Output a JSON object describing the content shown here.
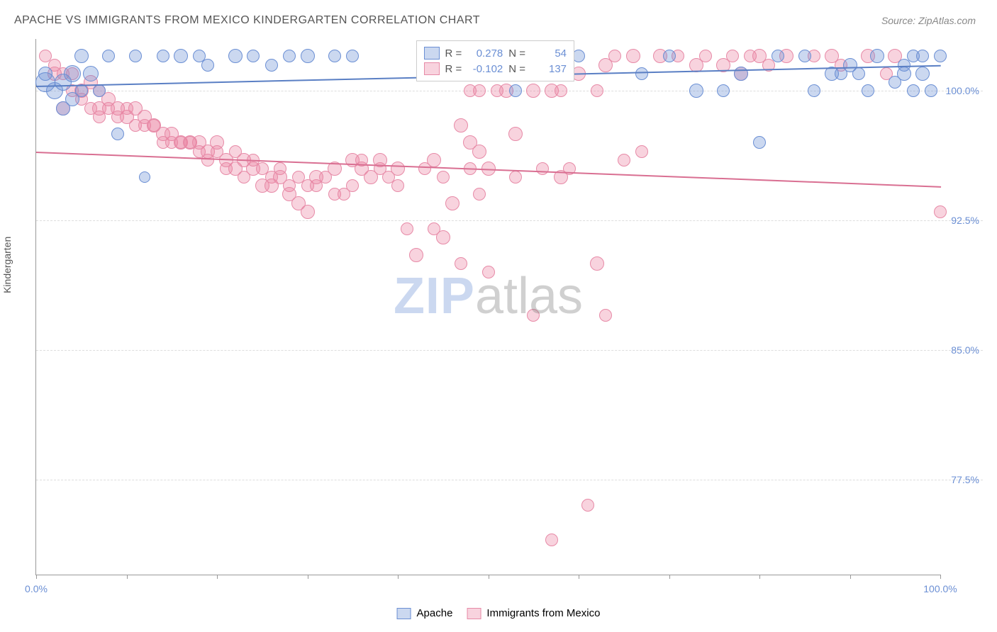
{
  "header": {
    "title": "APACHE VS IMMIGRANTS FROM MEXICO KINDERGARTEN CORRELATION CHART",
    "source": "Source: ZipAtlas.com"
  },
  "axes": {
    "y_label": "Kindergarten",
    "x_min": 0,
    "x_max": 100,
    "y_min": 72,
    "y_max": 103,
    "y_ticks": [
      77.5,
      85.0,
      92.5,
      100.0
    ],
    "y_tick_labels": [
      "77.5%",
      "85.0%",
      "92.5%",
      "100.0%"
    ],
    "x_ticks": [
      0,
      10,
      20,
      30,
      40,
      50,
      60,
      70,
      80,
      90,
      100
    ],
    "x_tick_labels": {
      "0": "0.0%",
      "100": "100.0%"
    }
  },
  "series": {
    "apache": {
      "label": "Apache",
      "color_fill": "rgba(107,143,212,0.35)",
      "color_stroke": "#6b8fd4",
      "r_value": "0.278",
      "n_value": "54",
      "trend": {
        "x1": 0,
        "y1": 100.3,
        "x2": 100,
        "y2": 101.5,
        "color": "#5a7fc4"
      },
      "points": [
        [
          1,
          100.5,
          14
        ],
        [
          1,
          101,
          10
        ],
        [
          2,
          100,
          12
        ],
        [
          3,
          100.5,
          12
        ],
        [
          3,
          99,
          10
        ],
        [
          4,
          101,
          12
        ],
        [
          4,
          99.5,
          10
        ],
        [
          5,
          100,
          9
        ],
        [
          5,
          102,
          10
        ],
        [
          6,
          101,
          11
        ],
        [
          7,
          100,
          9
        ],
        [
          8,
          102,
          9
        ],
        [
          9,
          97.5,
          9
        ],
        [
          11,
          102,
          9
        ],
        [
          12,
          95,
          8
        ],
        [
          14,
          102,
          9
        ],
        [
          16,
          102,
          10
        ],
        [
          18,
          102,
          9
        ],
        [
          19,
          101.5,
          9
        ],
        [
          22,
          102,
          10
        ],
        [
          24,
          102,
          9
        ],
        [
          26,
          101.5,
          9
        ],
        [
          28,
          102,
          9
        ],
        [
          30,
          102,
          10
        ],
        [
          33,
          102,
          9
        ],
        [
          35,
          102,
          9
        ],
        [
          49,
          102,
          9
        ],
        [
          53,
          100,
          9
        ],
        [
          56,
          101,
          9
        ],
        [
          60,
          102,
          9
        ],
        [
          67,
          101,
          9
        ],
        [
          70,
          102,
          9
        ],
        [
          73,
          100,
          10
        ],
        [
          76,
          100,
          9
        ],
        [
          78,
          101,
          10
        ],
        [
          80,
          97,
          9
        ],
        [
          82,
          102,
          9
        ],
        [
          85,
          102,
          9
        ],
        [
          86,
          100,
          9
        ],
        [
          88,
          101,
          10
        ],
        [
          89,
          101,
          9
        ],
        [
          90,
          101.5,
          10
        ],
        [
          91,
          101,
          9
        ],
        [
          92,
          100,
          9
        ],
        [
          93,
          102,
          10
        ],
        [
          95,
          100.5,
          9
        ],
        [
          96,
          101.5,
          9
        ],
        [
          96,
          101,
          10
        ],
        [
          97,
          100,
          9
        ],
        [
          97,
          102,
          9
        ],
        [
          98,
          101,
          10
        ],
        [
          98,
          102,
          9
        ],
        [
          99,
          100,
          9
        ],
        [
          100,
          102,
          9
        ]
      ]
    },
    "mexico": {
      "label": "Immigrants from Mexico",
      "color_fill": "rgba(235,130,160,0.35)",
      "color_stroke": "#e78aa7",
      "r_value": "-0.102",
      "n_value": "137",
      "trend": {
        "x1": 0,
        "y1": 96.5,
        "x2": 100,
        "y2": 94.5,
        "color": "#d96f92"
      },
      "points": [
        [
          1,
          102,
          9
        ],
        [
          2,
          101.5,
          9
        ],
        [
          2,
          101,
          10
        ],
        [
          3,
          101,
          9
        ],
        [
          3,
          99,
          10
        ],
        [
          4,
          101,
          9
        ],
        [
          4,
          100,
          9
        ],
        [
          5,
          100,
          10
        ],
        [
          5,
          99.5,
          9
        ],
        [
          6,
          100.5,
          10
        ],
        [
          6,
          99,
          9
        ],
        [
          7,
          100,
          9
        ],
        [
          7,
          99,
          10
        ],
        [
          7,
          98.5,
          9
        ],
        [
          8,
          99.5,
          10
        ],
        [
          8,
          99,
          9
        ],
        [
          9,
          99,
          10
        ],
        [
          9,
          98.5,
          9
        ],
        [
          10,
          98.5,
          10
        ],
        [
          10,
          99,
          9
        ],
        [
          11,
          99,
          10
        ],
        [
          11,
          98,
          9
        ],
        [
          12,
          98.5,
          10
        ],
        [
          12,
          98,
          9
        ],
        [
          13,
          98,
          10
        ],
        [
          13,
          98,
          9
        ],
        [
          14,
          97.5,
          10
        ],
        [
          14,
          97,
          9
        ],
        [
          15,
          97.5,
          10
        ],
        [
          15,
          97,
          9
        ],
        [
          16,
          97,
          10
        ],
        [
          16,
          97,
          9
        ],
        [
          17,
          97,
          10
        ],
        [
          17,
          97,
          9
        ],
        [
          18,
          97,
          10
        ],
        [
          18,
          96.5,
          9
        ],
        [
          19,
          96.5,
          10
        ],
        [
          19,
          96,
          9
        ],
        [
          20,
          96.5,
          9
        ],
        [
          20,
          97,
          10
        ],
        [
          21,
          95.5,
          9
        ],
        [
          21,
          96,
          10
        ],
        [
          22,
          96.5,
          9
        ],
        [
          22,
          95.5,
          10
        ],
        [
          23,
          96,
          10
        ],
        [
          23,
          95,
          9
        ],
        [
          24,
          95.5,
          10
        ],
        [
          24,
          96,
          9
        ],
        [
          25,
          95.5,
          9
        ],
        [
          25,
          94.5,
          10
        ],
        [
          26,
          95,
          9
        ],
        [
          26,
          94.5,
          10
        ],
        [
          27,
          95.5,
          9
        ],
        [
          27,
          95,
          10
        ],
        [
          28,
          94.5,
          9
        ],
        [
          28,
          94,
          10
        ],
        [
          29,
          95,
          9
        ],
        [
          29,
          93.5,
          10
        ],
        [
          30,
          94.5,
          9
        ],
        [
          30,
          93,
          10
        ],
        [
          31,
          94.5,
          9
        ],
        [
          31,
          95,
          10
        ],
        [
          32,
          95,
          9
        ],
        [
          33,
          94,
          9
        ],
        [
          33,
          95.5,
          10
        ],
        [
          34,
          94,
          9
        ],
        [
          35,
          96,
          10
        ],
        [
          35,
          94.5,
          9
        ],
        [
          36,
          95.5,
          10
        ],
        [
          36,
          96,
          9
        ],
        [
          37,
          95,
          10
        ],
        [
          38,
          95.5,
          9
        ],
        [
          38,
          96,
          10
        ],
        [
          39,
          95,
          9
        ],
        [
          40,
          95.5,
          10
        ],
        [
          40,
          94.5,
          9
        ],
        [
          41,
          92,
          9
        ],
        [
          42,
          90.5,
          10
        ],
        [
          43,
          95.5,
          9
        ],
        [
          44,
          96,
          10
        ],
        [
          44,
          92,
          9
        ],
        [
          45,
          91.5,
          10
        ],
        [
          45,
          95,
          9
        ],
        [
          46,
          93.5,
          10
        ],
        [
          47,
          90,
          9
        ],
        [
          47,
          98,
          10
        ],
        [
          48,
          95.5,
          9
        ],
        [
          48,
          97,
          10
        ],
        [
          48,
          100,
          9
        ],
        [
          48,
          101,
          9
        ],
        [
          49,
          96.5,
          10
        ],
        [
          49,
          100,
          9
        ],
        [
          49,
          94,
          9
        ],
        [
          50,
          95.5,
          10
        ],
        [
          50,
          89.5,
          9
        ],
        [
          51,
          100,
          9
        ],
        [
          52,
          100,
          10
        ],
        [
          52,
          101,
          9
        ],
        [
          53,
          95,
          9
        ],
        [
          53,
          97.5,
          10
        ],
        [
          54,
          101.5,
          9
        ],
        [
          55,
          100,
          10
        ],
        [
          55,
          87,
          9
        ],
        [
          56,
          95.5,
          9
        ],
        [
          57,
          100,
          10
        ],
        [
          57,
          74,
          9
        ],
        [
          58,
          100,
          9
        ],
        [
          58,
          95,
          10
        ],
        [
          59,
          95.5,
          9
        ],
        [
          60,
          101,
          10
        ],
        [
          61,
          76,
          9
        ],
        [
          62,
          100,
          9
        ],
        [
          62,
          90,
          10
        ],
        [
          63,
          87,
          9
        ],
        [
          63,
          101.5,
          10
        ],
        [
          64,
          102,
          9
        ],
        [
          65,
          96,
          9
        ],
        [
          66,
          102,
          10
        ],
        [
          67,
          96.5,
          9
        ],
        [
          69,
          102,
          10
        ],
        [
          71,
          102,
          9
        ],
        [
          73,
          101.5,
          10
        ],
        [
          74,
          102,
          9
        ],
        [
          76,
          101.5,
          10
        ],
        [
          77,
          102,
          9
        ],
        [
          78,
          101,
          10
        ],
        [
          79,
          102,
          9
        ],
        [
          80,
          102,
          10
        ],
        [
          81,
          101.5,
          9
        ],
        [
          83,
          102,
          10
        ],
        [
          86,
          102,
          9
        ],
        [
          88,
          102,
          10
        ],
        [
          89,
          101.5,
          9
        ],
        [
          92,
          102,
          10
        ],
        [
          94,
          101,
          9
        ],
        [
          95,
          102,
          10
        ],
        [
          100,
          93,
          9
        ]
      ]
    }
  },
  "legend_box": {
    "r_label": "R =",
    "n_label": "N ="
  },
  "watermark": {
    "zip": "ZIP",
    "atlas": "atlas"
  }
}
